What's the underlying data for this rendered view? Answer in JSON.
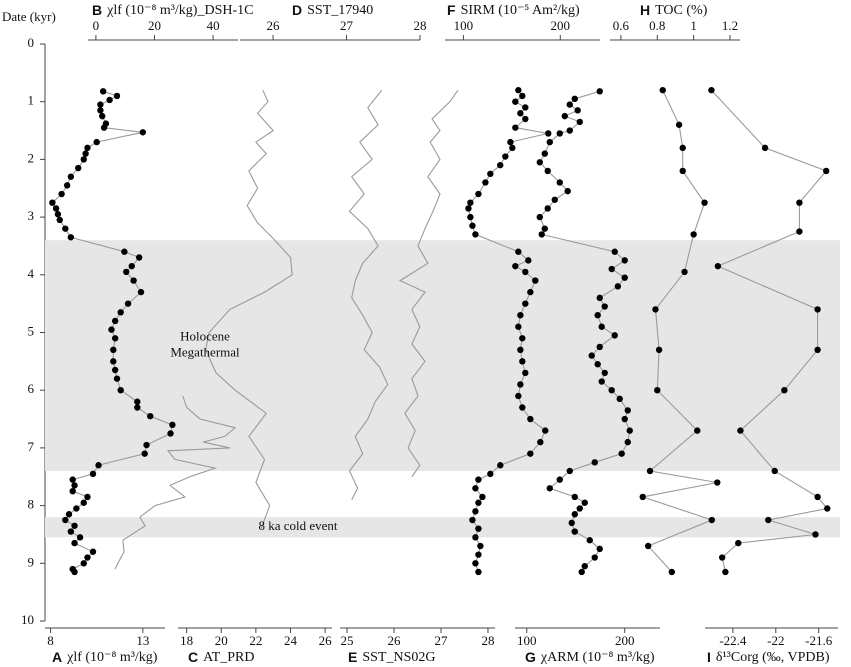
{
  "chart_data": {
    "type": "line",
    "ylabel": "Date (kyr)",
    "ylim": [
      0,
      10
    ],
    "yticks": [
      0,
      1,
      2,
      3,
      4,
      5,
      6,
      7,
      8,
      9,
      10
    ],
    "bands": [
      {
        "label": [
          "Holocene",
          "Megathermal"
        ],
        "range": [
          3.4,
          7.4
        ],
        "color": "#e6e6e6"
      },
      {
        "label": [
          "8 ka cold event"
        ],
        "range": [
          8.2,
          8.55
        ],
        "color": "#e6e6e6"
      }
    ],
    "panels": [
      {
        "letter": "A",
        "label": "χlf (10⁻⁸ m³/kg)",
        "axis": "bottom",
        "xlim": [
          7.7,
          14.2
        ],
        "xticks": [
          8,
          13
        ],
        "markers": true,
        "color": "#000000",
        "line_color": "#9a9a9a",
        "age": [
          0.82,
          0.9,
          0.97,
          1.05,
          1.15,
          1.25,
          1.38,
          1.45,
          1.53,
          1.7,
          1.8,
          1.9,
          2.0,
          2.15,
          2.3,
          2.45,
          2.6,
          2.75,
          2.85,
          2.95,
          3.05,
          3.2,
          3.35,
          3.6,
          3.7,
          3.85,
          3.95,
          4.1,
          4.3,
          4.5,
          4.65,
          4.8,
          4.95,
          5.1,
          5.3,
          5.5,
          5.65,
          5.8,
          6.0,
          6.2,
          6.3,
          6.45,
          6.6,
          6.75,
          6.95,
          7.1,
          7.3,
          7.45,
          7.55,
          7.65,
          7.75,
          7.85,
          7.95,
          8.05,
          8.15,
          8.25,
          8.35,
          8.45,
          8.55,
          8.65,
          8.8,
          8.9,
          9.0,
          9.1,
          9.15
        ],
        "values": [
          10.85,
          11.6,
          11.2,
          10.7,
          10.7,
          10.8,
          11.0,
          10.9,
          13.0,
          10.5,
          10.0,
          9.9,
          9.8,
          9.5,
          9.1,
          8.9,
          8.6,
          8.1,
          8.3,
          8.4,
          8.5,
          8.8,
          9.1,
          12.0,
          12.8,
          12.4,
          12.1,
          12.5,
          12.9,
          12.2,
          11.8,
          11.5,
          11.3,
          11.5,
          11.4,
          11.4,
          11.5,
          11.6,
          11.8,
          12.7,
          12.7,
          13.4,
          14.6,
          14.5,
          13.2,
          13.1,
          10.6,
          10.3,
          9.2,
          9.3,
          9.2,
          10.0,
          9.8,
          9.4,
          9.0,
          8.8,
          9.3,
          9.1,
          9.6,
          9.3,
          10.3,
          10.0,
          9.8,
          9.2,
          9.3
        ]
      },
      {
        "letter": "B",
        "label": "χlf (10⁻⁸ m³/kg)_DSH-1C",
        "axis": "top",
        "xlim": [
          -2.7,
          48.5
        ],
        "xticks": [
          0,
          20,
          40
        ],
        "markers": false,
        "line_color": "#9a9a9a",
        "age": [
          6.1,
          6.3,
          6.5,
          6.65,
          6.8,
          6.9,
          7.0,
          7.05,
          7.2,
          7.35,
          7.5,
          7.65,
          7.85,
          8.0,
          8.2,
          8.35,
          8.6,
          8.8,
          9.0,
          9.1
        ],
        "values": [
          29.7,
          31,
          35.6,
          47.5,
          44,
          36.6,
          45.8,
          24.6,
          27,
          40.7,
          32,
          25.3,
          30.4,
          20.2,
          15,
          16.8,
          9.2,
          9.6,
          7.5,
          6.5
        ]
      },
      {
        "letter": "C",
        "label": "AT_PRD",
        "axis": "bottom",
        "xlim": [
          17.5,
          26.4
        ],
        "xticks": [
          18,
          20,
          22,
          24,
          26
        ],
        "markers": false,
        "line_color": "#9a9a9a",
        "age": [
          0.8,
          1.0,
          1.2,
          1.5,
          1.7,
          1.9,
          2.2,
          2.5,
          2.8,
          3.1,
          3.4,
          3.7,
          4.0,
          4.3,
          4.6,
          5.0,
          5.3,
          5.7,
          6.0,
          6.4,
          6.8,
          7.2,
          7.6,
          8.0,
          8.4
        ],
        "values": [
          22.4,
          22.7,
          22.1,
          23.0,
          22.0,
          22.6,
          21.6,
          22.1,
          21.5,
          22.1,
          23.1,
          24.0,
          24.1,
          22.5,
          20.5,
          19.3,
          19.1,
          19.7,
          20.8,
          22.6,
          21.6,
          22.5,
          22.0,
          22.8,
          22.3
        ]
      },
      {
        "letter": "D",
        "label": "SST_17940",
        "axis": "top",
        "xlim": [
          25.55,
          28.0
        ],
        "xticks": [
          26,
          27,
          28
        ],
        "markers": false,
        "line_color": "#9a9a9a",
        "age": [
          0.8,
          1.1,
          1.4,
          1.7,
          2.0,
          2.3,
          2.6,
          2.9,
          3.2,
          3.5,
          3.8,
          4.1,
          4.4,
          4.7,
          5.0,
          5.3,
          5.6,
          5.9,
          6.2,
          6.5,
          6.8,
          7.1,
          7.4,
          7.7,
          7.9
        ],
        "values": [
          27.48,
          27.29,
          27.43,
          27.18,
          27.35,
          27.07,
          27.24,
          27.04,
          27.29,
          27.43,
          27.22,
          27.12,
          27.07,
          27.22,
          27.35,
          27.24,
          27.45,
          27.56,
          27.39,
          27.29,
          27.12,
          27.22,
          27.04,
          27.15,
          27.07
        ]
      },
      {
        "letter": "E",
        "label": "SST_NS02G",
        "axis": "bottom",
        "xlim": [
          24.85,
          28.15
        ],
        "xticks": [
          25,
          26,
          27,
          28
        ],
        "markers": false,
        "line_color": "#9a9a9a",
        "age": [
          0.8,
          1.0,
          1.3,
          1.5,
          1.7,
          2.0,
          2.3,
          2.6,
          2.9,
          3.2,
          3.5,
          3.8,
          4.1,
          4.3,
          4.6,
          4.9,
          5.2,
          5.5,
          5.8,
          6.1,
          6.4,
          6.7,
          7.0,
          7.3,
          7.5
        ],
        "values": [
          27.36,
          27.19,
          26.81,
          26.98,
          26.77,
          26.98,
          26.72,
          26.98,
          26.83,
          26.66,
          26.51,
          26.72,
          26.13,
          26.66,
          26.38,
          26.55,
          26.38,
          26.66,
          26.38,
          26.51,
          26.23,
          26.45,
          26.3,
          26.55,
          26.38
        ]
      },
      {
        "letter": "F",
        "label": "SIRM (10⁻⁵ Am²/kg)",
        "axis": "top",
        "xlim": [
          81,
          241
        ],
        "xticks": [
          100,
          200
        ],
        "markers": true,
        "color": "#000000",
        "line_color": "#9a9a9a",
        "age": [
          0.8,
          0.9,
          1.0,
          1.1,
          1.2,
          1.3,
          1.45,
          1.55,
          1.7,
          1.8,
          1.95,
          2.1,
          2.25,
          2.4,
          2.6,
          2.75,
          2.85,
          3.0,
          3.15,
          3.3,
          3.6,
          3.75,
          3.85,
          3.95,
          4.1,
          4.3,
          4.5,
          4.7,
          4.9,
          5.1,
          5.3,
          5.5,
          5.7,
          5.9,
          6.1,
          6.3,
          6.5,
          6.7,
          6.9,
          7.1,
          7.3,
          7.45,
          7.55,
          7.7,
          7.85,
          7.95,
          8.1,
          8.25,
          8.4,
          8.55,
          8.7,
          8.85,
          9.0,
          9.15
        ],
        "values": [
          156.7,
          160.8,
          153.6,
          163.9,
          158.8,
          163.9,
          153.6,
          187.6,
          148.5,
          150.5,
          143.3,
          138,
          127.8,
          122.7,
          115.5,
          107.2,
          105.2,
          107.2,
          109.3,
          112.4,
          156.7,
          167,
          153.6,
          163.9,
          174.2,
          169.1,
          163.9,
          158.8,
          156.7,
          160.8,
          158.8,
          160.8,
          163.9,
          158.8,
          156.7,
          160.8,
          169.1,
          184.5,
          179.4,
          169.1,
          138.1,
          127.8,
          115.5,
          112.4,
          119.6,
          115.5,
          112.4,
          109.3,
          115.5,
          112.4,
          117.5,
          115.5,
          112.4,
          115.5
        ]
      },
      {
        "letter": "G",
        "label": "χARM (10⁻⁸ m³/kg)",
        "axis": "bottom",
        "xlim": [
          88,
          236
        ],
        "xticks": [
          100,
          200
        ],
        "markers": true,
        "color": "#000000",
        "line_color": "#9a9a9a",
        "age": [
          0.82,
          0.95,
          1.05,
          1.15,
          1.25,
          1.35,
          1.5,
          1.55,
          1.7,
          1.9,
          2.05,
          2.2,
          2.4,
          2.55,
          2.7,
          2.85,
          3.0,
          3.2,
          3.3,
          3.6,
          3.75,
          3.9,
          4.05,
          4.2,
          4.4,
          4.55,
          4.7,
          4.9,
          5.05,
          5.25,
          5.4,
          5.55,
          5.7,
          5.85,
          6.0,
          6.15,
          6.35,
          6.5,
          6.7,
          6.9,
          7.1,
          7.25,
          7.4,
          7.55,
          7.7,
          7.85,
          7.95,
          8.05,
          8.15,
          8.3,
          8.45,
          8.6,
          8.75,
          8.9,
          9.05,
          9.15
        ],
        "values": [
          174.5,
          149,
          143.9,
          152,
          138.8,
          154.1,
          143.9,
          133.7,
          123.5,
          118.4,
          113.3,
          121.4,
          133.7,
          141.8,
          128.6,
          121.4,
          113.3,
          118.4,
          115.3,
          189.8,
          200,
          186.7,
          200,
          193,
          174.5,
          179.6,
          172.4,
          176.5,
          189.8,
          174.5,
          166.3,
          172.4,
          179.6,
          176.5,
          186.7,
          194.9,
          203.1,
          200,
          205.1,
          203.1,
          196.9,
          169.4,
          143.9,
          133.7,
          123.5,
          149,
          159.2,
          154.1,
          149,
          145.9,
          149,
          164.3,
          174.5,
          169.4,
          159.2,
          156.1
        ]
      },
      {
        "letter": "H",
        "label": "TOC (%)",
        "axis": "top",
        "xlim": [
          0.54,
          1.255
        ],
        "xticks": [
          0.6,
          0.8,
          1,
          1.2
        ],
        "markers": true,
        "color": "#000000",
        "line_color": "#9a9a9a",
        "age": [
          0.8,
          1.4,
          1.8,
          2.2,
          2.75,
          3.3,
          3.95,
          4.6,
          5.3,
          6.0,
          6.7,
          7.4,
          7.6,
          7.85,
          8.25,
          8.7,
          9.15
        ],
        "values": [
          0.83,
          0.92,
          0.94,
          0.94,
          1.06,
          1.0,
          0.95,
          0.79,
          0.81,
          0.8,
          1.02,
          0.76,
          1.13,
          0.72,
          1.1,
          0.75,
          0.88
        ]
      },
      {
        "letter": "I",
        "label": "δ¹³Corg (‰, VPDB)",
        "axis": "bottom",
        "xlim": [
          -22.66,
          -21.42
        ],
        "xticks": [
          -22.4,
          -22,
          -21.6
        ],
        "markers": true,
        "color": "#000000",
        "line_color": "#9a9a9a",
        "age": [
          0.8,
          1.8,
          2.2,
          2.75,
          3.25,
          3.85,
          4.6,
          5.3,
          6.0,
          6.7,
          7.4,
          7.85,
          8.05,
          8.25,
          8.5,
          8.65,
          8.9,
          9.15
        ],
        "values": [
          -22.6,
          -22.1,
          -21.53,
          -21.78,
          -21.78,
          -22.54,
          -21.61,
          -21.61,
          -21.92,
          -22.33,
          -22.01,
          -21.61,
          -21.52,
          -22.07,
          -21.63,
          -22.35,
          -22.5,
          -22.47
        ]
      }
    ]
  }
}
